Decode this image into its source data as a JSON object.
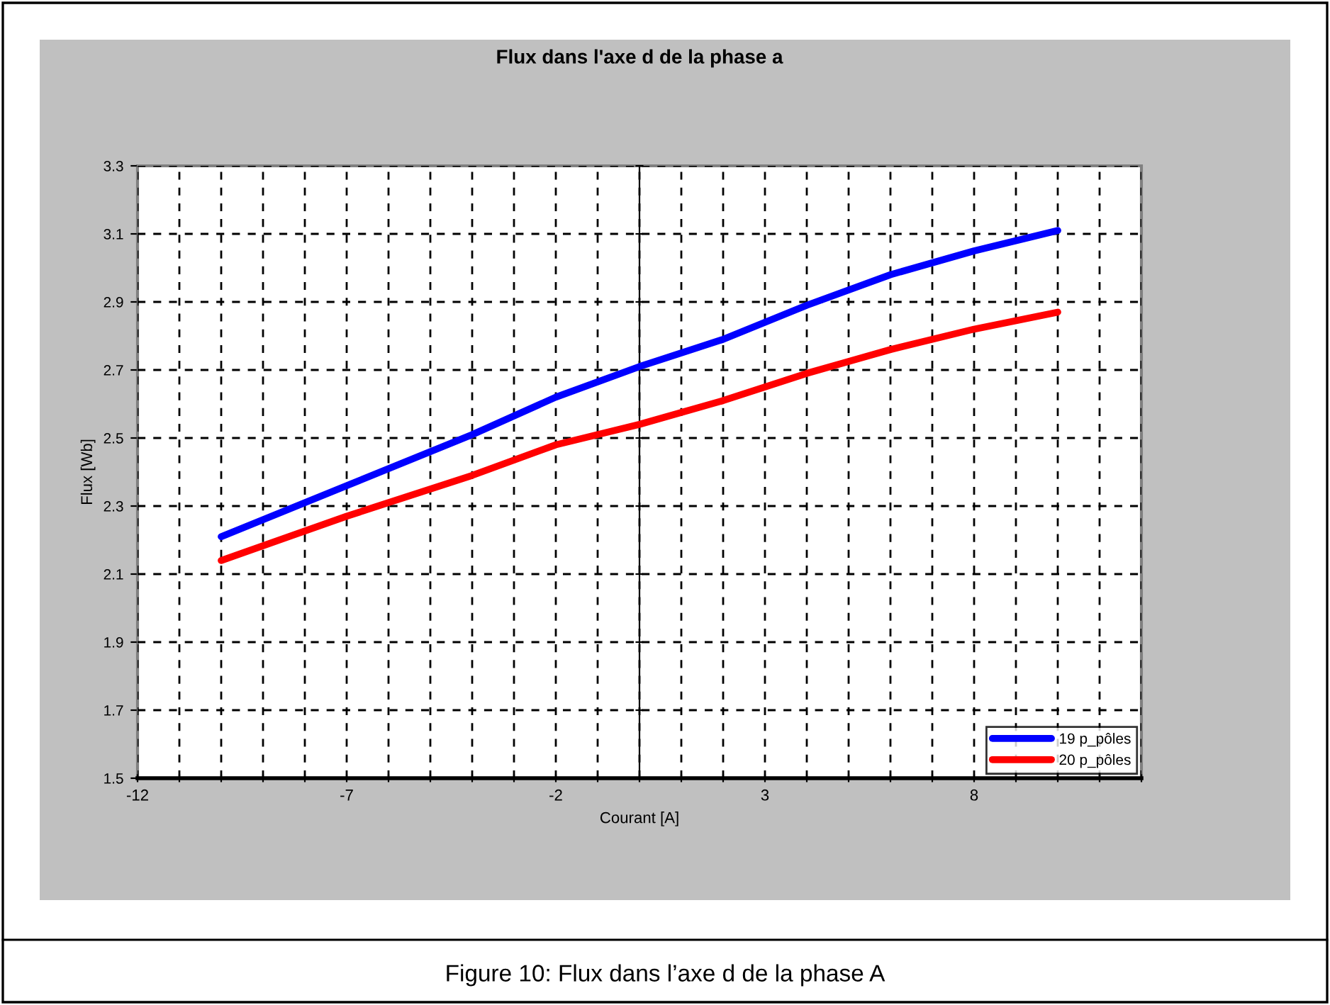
{
  "chart_data": {
    "type": "line",
    "title": "Flux dans l'axe d de la phase a",
    "xlabel": "Courant [A]",
    "ylabel": "Flux [Wb]",
    "annotations": [
      "Figure 10: Flux dans l’axe d de la phase A"
    ],
    "xlim": [
      -12,
      12
    ],
    "ylim": [
      1.5,
      3.3
    ],
    "xticks": [
      -12,
      {
        "value": -11,
        "label": null
      },
      {
        "value": -10,
        "label": null
      },
      {
        "value": -9,
        "label": null
      },
      {
        "value": -8,
        "label": null
      },
      -7,
      {
        "value": -6,
        "label": null
      },
      {
        "value": -5,
        "label": null
      },
      {
        "value": -4,
        "label": null
      },
      {
        "value": -3,
        "label": null
      },
      -2,
      {
        "value": -1,
        "label": null
      },
      {
        "value": 0,
        "label": null
      },
      {
        "value": 1,
        "label": null
      },
      {
        "value": 2,
        "label": null
      },
      3,
      {
        "value": 4,
        "label": null
      },
      {
        "value": 5,
        "label": null
      },
      {
        "value": 6,
        "label": null
      },
      {
        "value": 7,
        "label": null
      },
      8,
      {
        "value": 9,
        "label": null
      },
      {
        "value": 10,
        "label": null
      },
      {
        "value": 11,
        "label": null
      },
      {
        "value": 12,
        "label": null
      }
    ],
    "yticks": [
      1.5,
      1.7,
      1.9,
      2.1,
      2.3,
      2.5,
      2.7,
      2.9,
      3.1,
      3.3
    ],
    "grid": true,
    "legend": "bottom right",
    "line_style": "solid",
    "x": [
      -10,
      -7,
      -4,
      -2,
      0,
      2,
      4,
      6,
      8,
      10
    ],
    "series": [
      {
        "name": "19 p_pôles",
        "color": "#0000ff",
        "values": [
          2.21,
          2.36,
          2.51,
          2.62,
          2.71,
          2.79,
          2.89,
          2.98,
          3.05,
          3.11
        ]
      },
      {
        "name": "20 p_pôles",
        "color": "#ff0000",
        "values": [
          2.14,
          2.27,
          2.39,
          2.48,
          2.54,
          2.61,
          2.69,
          2.76,
          2.82,
          2.87
        ]
      }
    ]
  }
}
